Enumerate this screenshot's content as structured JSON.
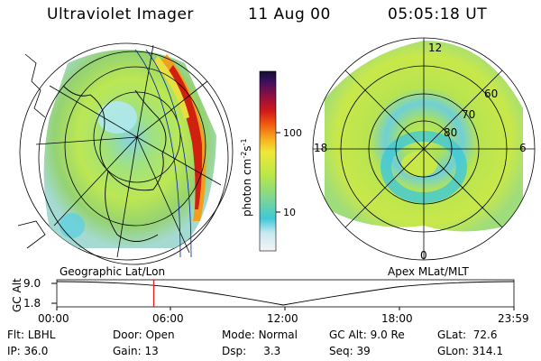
{
  "header": {
    "instrument": "Ultraviolet Imager",
    "date": "11 Aug 00",
    "time": "05:05:18 UT"
  },
  "colorbar": {
    "label": "photon cm",
    "label_sup1": "-2",
    "label_mid": "s",
    "label_sup2": "-1",
    "ticks": [
      "100",
      "10"
    ]
  },
  "left_panel": {
    "caption": "Geographic Lat/Lon"
  },
  "right_panel": {
    "caption": "Apex MLat/MLT",
    "lat_labels": [
      "60",
      "70",
      "80"
    ],
    "mlt_labels": [
      "12",
      "18",
      "6",
      "0"
    ]
  },
  "timeline": {
    "ylabel": "GC Alt",
    "y_ticks": [
      "9.0",
      "1.8"
    ],
    "x_ticks": [
      "00:00",
      "06:00",
      "12:00",
      "18:00",
      "23:59"
    ],
    "marker_fraction": 0.212
  },
  "info": {
    "row1": [
      {
        "key": "Flt:",
        "value": "LBHL"
      },
      {
        "key": "Door:",
        "value": "Open"
      },
      {
        "key": "Mode:",
        "value": "Normal"
      },
      {
        "key": "GC Alt:",
        "value": "9.0 Re"
      },
      {
        "key": "GLat:",
        "value": "72.6"
      }
    ],
    "row2": [
      {
        "key": "IP:",
        "value": "36.0"
      },
      {
        "key": "Gain:",
        "value": "13"
      },
      {
        "key": "Dsp:",
        "value": "3.3"
      },
      {
        "key": "Seq:",
        "value": "39"
      },
      {
        "key": "GLon:",
        "value": "314.1"
      }
    ]
  }
}
